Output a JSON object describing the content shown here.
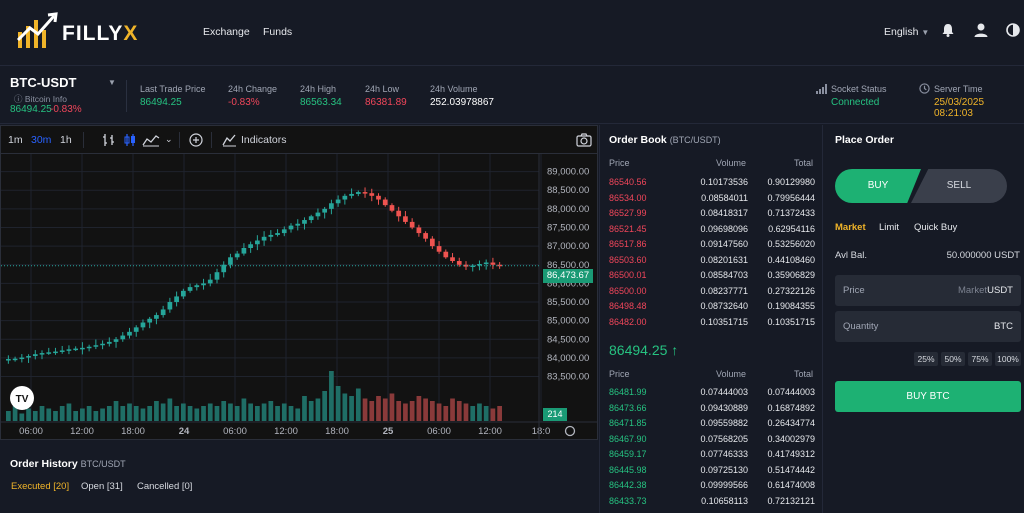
{
  "header": {
    "logo_main": "FILLY",
    "logo_accent": "X",
    "nav": [
      "Exchange",
      "Funds"
    ],
    "language": "English",
    "icons": [
      "bell-icon",
      "user-icon",
      "theme-toggle-icon"
    ]
  },
  "ticker": {
    "pair": "BTC-USDT",
    "info": "Bitcoin Info",
    "price": "86494.25",
    "change": "-0.83%",
    "stats": [
      {
        "label": "Last Trade Price",
        "value": "86494.25"
      },
      {
        "label": "24h Change",
        "value": "-0.83%"
      },
      {
        "label": "24h High",
        "value": "86563.34"
      },
      {
        "label": "24h Low",
        "value": "86381.89"
      },
      {
        "label": "24h Volume",
        "value": "252.03978867"
      }
    ],
    "socket_label": "Socket Status",
    "socket_value": "Connected",
    "server_label": "Server Time",
    "server_value": "25/03/2025 08:21:03"
  },
  "chart_toolbar": {
    "timeframes": [
      "1m",
      "30m",
      "1h"
    ],
    "active_timeframe": "30m",
    "indicators": "Indicators"
  },
  "chart_data": {
    "type": "candlestick",
    "y_ticks": [
      "89,000.00",
      "88,500.00",
      "88,000.00",
      "87,500.00",
      "87,000.00",
      "86,500.00",
      "86,000.00",
      "85,500.00",
      "85,000.00",
      "84,500.00",
      "84,000.00",
      "83,500.00"
    ],
    "x_ticks": [
      "06:00",
      "12:00",
      "18:00",
      "24",
      "06:00",
      "12:00",
      "18:00",
      "25",
      "06:00",
      "12:00",
      "18:0"
    ],
    "last_price_label": "86,473.67",
    "last_price": 86473.67,
    "volume_label": "214",
    "ylim": [
      83300,
      89150
    ],
    "watermark": "TV",
    "close_path": [
      83970,
      83980,
      84010,
      84050,
      84100,
      84130,
      84150,
      84170,
      84200,
      84230,
      84250,
      84270,
      84300,
      84340,
      84380,
      84430,
      84500,
      84600,
      84700,
      84820,
      84950,
      85050,
      85150,
      85300,
      85500,
      85650,
      85800,
      85900,
      85950,
      86000,
      86100,
      86300,
      86500,
      86700,
      86800,
      86950,
      87050,
      87150,
      87250,
      87300,
      87350,
      87450,
      87550,
      87600,
      87700,
      87800,
      87900,
      88000,
      88150,
      88250,
      88350,
      88400,
      88450,
      88420,
      88350,
      88250,
      88100,
      87950,
      87800,
      87650,
      87500,
      87350,
      87200,
      87000,
      86850,
      86700,
      86600,
      86500,
      86450,
      86480,
      86520,
      86560,
      86500,
      86473
    ],
    "volume_path": [
      0.2,
      0.3,
      0.15,
      0.25,
      0.2,
      0.3,
      0.25,
      0.2,
      0.3,
      0.35,
      0.2,
      0.25,
      0.3,
      0.2,
      0.25,
      0.3,
      0.4,
      0.3,
      0.35,
      0.3,
      0.25,
      0.3,
      0.4,
      0.35,
      0.45,
      0.3,
      0.35,
      0.3,
      0.25,
      0.3,
      0.35,
      0.3,
      0.4,
      0.35,
      0.3,
      0.45,
      0.35,
      0.3,
      0.35,
      0.4,
      0.3,
      0.35,
      0.3,
      0.25,
      0.5,
      0.4,
      0.45,
      0.6,
      1.0,
      0.7,
      0.55,
      0.5,
      0.65,
      0.45,
      0.4,
      0.5,
      0.45,
      0.55,
      0.4,
      0.35,
      0.4,
      0.5,
      0.45,
      0.4,
      0.35,
      0.3,
      0.45,
      0.4,
      0.35,
      0.3,
      0.35,
      0.3,
      0.25,
      0.3
    ]
  },
  "order_history": {
    "title": "Order History",
    "pair": "BTC/USDT",
    "tabs": [
      {
        "label": "Executed [20]",
        "active": true
      },
      {
        "label": "Open [31]",
        "active": false
      },
      {
        "label": "Cancelled [0]",
        "active": false
      }
    ]
  },
  "orderbook": {
    "title": "Order Book",
    "pair": "(BTC/USDT)",
    "headers": [
      "Price",
      "Volume",
      "Total"
    ],
    "asks": [
      [
        "86540.56",
        "0.10173536",
        "0.90129980"
      ],
      [
        "86534.00",
        "0.08584011",
        "0.79956444"
      ],
      [
        "86527.99",
        "0.08418317",
        "0.71372433"
      ],
      [
        "86521.45",
        "0.09698096",
        "0.62954116"
      ],
      [
        "86517.86",
        "0.09147560",
        "0.53256020"
      ],
      [
        "86503.60",
        "0.08201631",
        "0.44108460"
      ],
      [
        "86500.01",
        "0.08584703",
        "0.35906829"
      ],
      [
        "86500.00",
        "0.08237771",
        "0.27322126"
      ],
      [
        "86498.48",
        "0.08732640",
        "0.19084355"
      ],
      [
        "86482.00",
        "0.10351715",
        "0.10351715"
      ]
    ],
    "mid_price": "86494.25 ↑",
    "bids": [
      [
        "86481.99",
        "0.07444003",
        "0.07444003"
      ],
      [
        "86473.66",
        "0.09430889",
        "0.16874892"
      ],
      [
        "86471.85",
        "0.09559882",
        "0.26434774"
      ],
      [
        "86467.90",
        "0.07568205",
        "0.34002979"
      ],
      [
        "86459.17",
        "0.07746333",
        "0.41749312"
      ],
      [
        "86445.98",
        "0.09725130",
        "0.51474442"
      ],
      [
        "86442.38",
        "0.09999566",
        "0.61474008"
      ],
      [
        "86433.73",
        "0.10658113",
        "0.72132121"
      ]
    ]
  },
  "place_order": {
    "title": "Place Order",
    "buy_tab": "BUY",
    "sell_tab": "SELL",
    "order_types": [
      {
        "label": "Market",
        "active": true
      },
      {
        "label": "Limit",
        "active": false
      },
      {
        "label": "Quick Buy",
        "active": false
      }
    ],
    "avl_label": "Avl Bal.",
    "avl_value": "50.000000  USDT",
    "price_label": "Price",
    "price_placeholder": "Market",
    "price_unit": "USDT",
    "quantity_label": "Quantity",
    "quantity_unit": "BTC",
    "percent_buttons": [
      "25%",
      "50%",
      "75%",
      "100%"
    ],
    "submit": "BUY BTC"
  },
  "colors": {
    "up": "#26c281",
    "down": "#f0465a",
    "accent": "#f0b429",
    "buy": "#1db173"
  }
}
